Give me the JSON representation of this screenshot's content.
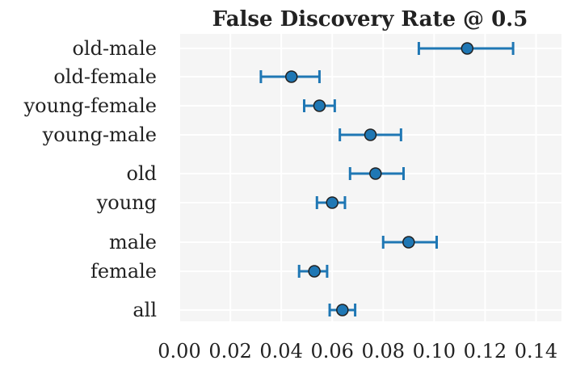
{
  "chart_data": {
    "type": "scatter",
    "title": "False Discovery Rate @ 0.5",
    "xlabel": "",
    "ylabel": "",
    "xlim": [
      0.0,
      0.15
    ],
    "xticks": [
      "0.00",
      "0.02",
      "0.04",
      "0.06",
      "0.08",
      "0.10",
      "0.12",
      "0.14"
    ],
    "grid": true,
    "background_color": "#f5f5f5",
    "grid_color": "#ffffff",
    "marker_color": "#1f77b4",
    "marker_edge_color": "#222222",
    "errorbar_color": "#1f77b4",
    "categories": [
      "old-male",
      "old-female",
      "young-female",
      "young-male",
      "old",
      "young",
      "male",
      "female",
      "all"
    ],
    "points": [
      {
        "label": "old-male",
        "value": 0.113,
        "lower": 0.094,
        "upper": 0.131
      },
      {
        "label": "old-female",
        "value": 0.044,
        "lower": 0.032,
        "upper": 0.055
      },
      {
        "label": "young-female",
        "value": 0.055,
        "lower": 0.049,
        "upper": 0.061
      },
      {
        "label": "young-male",
        "value": 0.075,
        "lower": 0.063,
        "upper": 0.087
      },
      {
        "label": "old",
        "value": 0.077,
        "lower": 0.067,
        "upper": 0.088
      },
      {
        "label": "young",
        "value": 0.06,
        "lower": 0.054,
        "upper": 0.065
      },
      {
        "label": "male",
        "value": 0.09,
        "lower": 0.08,
        "upper": 0.101
      },
      {
        "label": "female",
        "value": 0.053,
        "lower": 0.047,
        "upper": 0.058
      },
      {
        "label": "all",
        "value": 0.064,
        "lower": 0.059,
        "upper": 0.069
      }
    ]
  }
}
